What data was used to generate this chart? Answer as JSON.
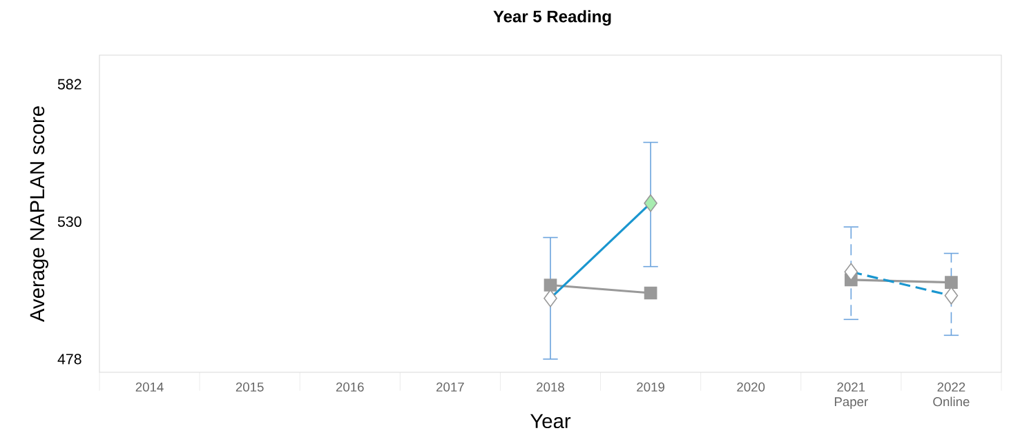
{
  "chart_data": {
    "type": "line",
    "title": "Year 5 Reading",
    "xlabel": "Year",
    "ylabel": "Average NAPLAN score",
    "categories": [
      "2014",
      "2015",
      "2016",
      "2017",
      "2018",
      "2019",
      "2020",
      "2021 Paper",
      "2022 Online"
    ],
    "ylim": [
      473,
      593
    ],
    "yticks": [
      478,
      530,
      582
    ],
    "grid": false,
    "series": [
      {
        "color": "#999999",
        "marker": "square",
        "line_style": "solid",
        "values": [
          null,
          null,
          null,
          null,
          506,
          503,
          null,
          508,
          507
        ]
      },
      {
        "color": "#1a96cf",
        "marker": "diamond",
        "line_style": "solid",
        "colors": [
          null,
          null,
          null,
          null,
          "#ffffff",
          "#a8ecb0",
          null,
          null,
          null
        ],
        "values": [
          null,
          null,
          null,
          null,
          501,
          537,
          null,
          null,
          null
        ],
        "errors": [
          null,
          null,
          null,
          null,
          [
            478,
            524
          ],
          [
            513,
            560
          ],
          null,
          null,
          null
        ]
      },
      {
        "color": "#1a96cf",
        "marker": "diamond",
        "line_style": "dashed",
        "colors": [
          null,
          null,
          null,
          null,
          null,
          null,
          null,
          "#ffffff",
          "#ffffff"
        ],
        "values": [
          null,
          null,
          null,
          null,
          null,
          null,
          null,
          511,
          502
        ],
        "errors": [
          null,
          null,
          null,
          null,
          null,
          null,
          null,
          [
            493,
            528
          ],
          [
            487,
            518
          ]
        ]
      }
    ]
  }
}
